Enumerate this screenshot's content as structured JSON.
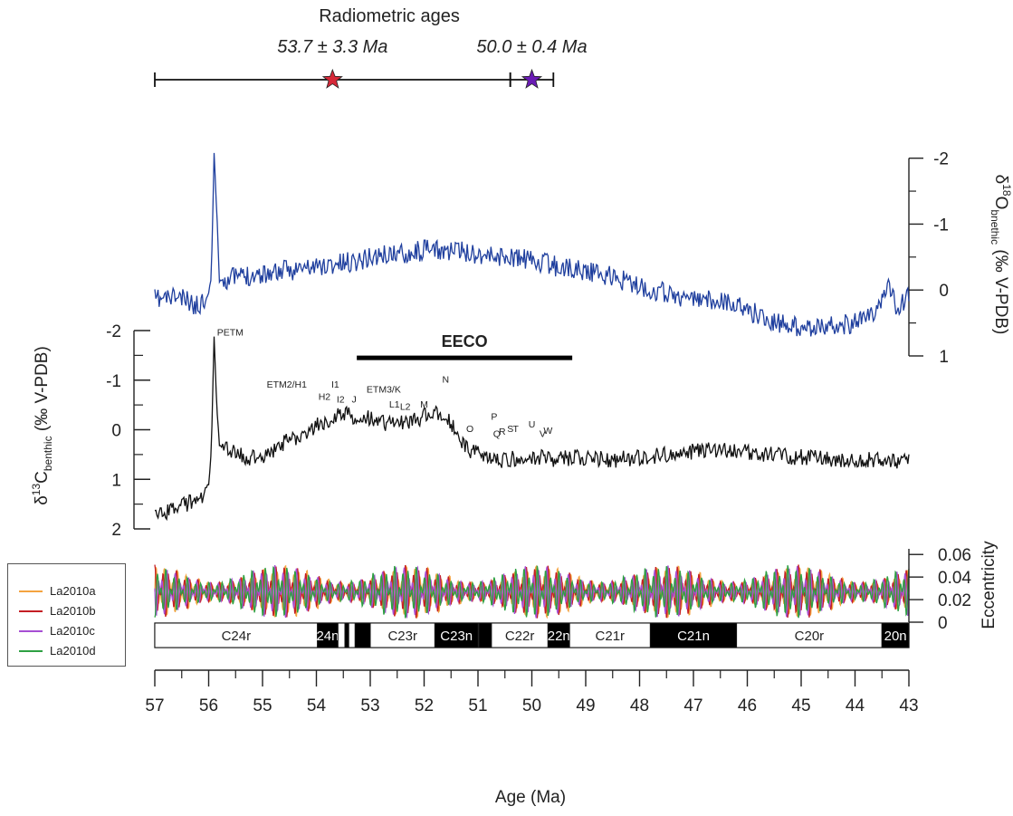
{
  "chart_data": [
    {
      "type": "scatter",
      "title": "Radiometric ages",
      "points": [
        {
          "label": "53.7 ± 3.3 Ma",
          "x": 53.7,
          "err": 3.3,
          "color": "#d62838"
        },
        {
          "label": "50.0 ± 0.4 Ma",
          "x": 50.0,
          "err": 0.4,
          "color": "#6a1bb5"
        }
      ]
    },
    {
      "type": "line",
      "ylabel_main": "δ",
      "ylabel_sup": "18",
      "ylabel_var": "O",
      "ylabel_sub": "bnethic",
      "ylabel_unit": " (‰ V-PDB)",
      "yticks": [
        "-2",
        "-1",
        "0",
        "1"
      ],
      "ylim": [
        1,
        -2.6
      ],
      "color": "#1f3f9e",
      "series": [
        {
          "x": [
            57.0,
            56.6,
            56.2,
            56.0,
            55.95,
            55.9,
            55.85,
            55.8,
            55.5,
            55.0,
            54.5,
            54.0,
            53.5,
            53.0,
            52.5,
            52.0,
            51.5,
            51.0,
            50.5,
            50.0,
            49.5,
            49.0,
            48.5,
            48.0,
            47.5,
            47.0,
            46.5,
            46.0,
            45.5,
            45.0,
            44.5,
            44.0,
            43.6,
            43.4,
            43.2,
            43.0
          ],
          "y": [
            0.15,
            0.1,
            0.25,
            0.05,
            -0.2,
            -2.1,
            -1.2,
            -0.15,
            -0.2,
            -0.25,
            -0.3,
            -0.35,
            -0.4,
            -0.5,
            -0.55,
            -0.6,
            -0.6,
            -0.55,
            -0.5,
            -0.45,
            -0.35,
            -0.3,
            -0.2,
            -0.05,
            0.05,
            0.15,
            0.15,
            0.3,
            0.5,
            0.55,
            0.55,
            0.5,
            0.35,
            -0.1,
            0.3,
            0.1
          ]
        }
      ]
    },
    {
      "type": "line",
      "ylabel_main": "δ",
      "ylabel_sup": "13",
      "ylabel_var": "C",
      "ylabel_sub": "benthic",
      "ylabel_unit": " (‰ V-PDB)",
      "yticks": [
        "-2",
        "-1",
        "0",
        "1",
        "2"
      ],
      "ylim": [
        2,
        -2
      ],
      "color": "#111111",
      "series": [
        {
          "x": [
            57.0,
            56.7,
            56.4,
            56.1,
            56.0,
            55.95,
            55.9,
            55.85,
            55.8,
            55.5,
            55.0,
            54.7,
            54.3,
            54.0,
            53.8,
            53.5,
            53.0,
            52.6,
            52.2,
            51.9,
            51.6,
            51.4,
            51.2,
            51.0,
            50.8,
            50.5,
            50.0,
            49.5,
            49.0,
            48.5,
            48.0,
            47.5,
            47.0,
            46.5,
            46.0,
            45.5,
            45.0,
            44.5,
            44.0,
            43.5,
            43.0
          ],
          "y": [
            1.8,
            1.6,
            1.5,
            1.3,
            1.1,
            0.4,
            -1.9,
            -0.5,
            0.3,
            0.5,
            0.6,
            0.3,
            0.1,
            -0.1,
            -0.2,
            -0.3,
            -0.25,
            -0.1,
            -0.2,
            -0.3,
            -0.35,
            0.1,
            0.4,
            0.5,
            0.6,
            0.6,
            0.55,
            0.6,
            0.55,
            0.6,
            0.55,
            0.5,
            0.45,
            0.4,
            0.45,
            0.5,
            0.55,
            0.6,
            0.6,
            0.6,
            0.65
          ]
        }
      ],
      "event_labels": [
        {
          "label": "PETM",
          "x": 55.6,
          "y": -1.9
        },
        {
          "label": "ETM2/H1",
          "x": 54.55,
          "y": -0.85
        },
        {
          "label": "H2",
          "x": 53.85,
          "y": -0.6
        },
        {
          "label": "I1",
          "x": 53.65,
          "y": -0.85
        },
        {
          "label": "I2",
          "x": 53.55,
          "y": -0.55
        },
        {
          "label": "J",
          "x": 53.3,
          "y": -0.55
        },
        {
          "label": "ETM3/K",
          "x": 52.75,
          "y": -0.75
        },
        {
          "label": "L1",
          "x": 52.55,
          "y": -0.45
        },
        {
          "label": "L2",
          "x": 52.35,
          "y": -0.4
        },
        {
          "label": "M",
          "x": 52.0,
          "y": -0.45
        },
        {
          "label": "N",
          "x": 51.6,
          "y": -0.95
        },
        {
          "label": "O",
          "x": 51.15,
          "y": 0.05
        },
        {
          "label": "P",
          "x": 50.7,
          "y": -0.2
        },
        {
          "label": "Q",
          "x": 50.65,
          "y": 0.15
        },
        {
          "label": "R",
          "x": 50.55,
          "y": 0.1
        },
        {
          "label": "S",
          "x": 50.4,
          "y": 0.05
        },
        {
          "label": "T",
          "x": 50.3,
          "y": 0.05
        },
        {
          "label": "U",
          "x": 50.0,
          "y": -0.05
        },
        {
          "label": "V",
          "x": 49.8,
          "y": 0.15
        },
        {
          "label": "W",
          "x": 49.7,
          "y": 0.08
        }
      ],
      "eeco": {
        "label": "EECO",
        "x_start": 53.25,
        "x_end": 49.25
      }
    },
    {
      "type": "line",
      "ylabel": "Eccentricity",
      "yticks": [
        "0",
        "0.02",
        "0.04",
        "0.06"
      ],
      "ylim": [
        0,
        0.065
      ],
      "series": [
        {
          "name": "La2010a",
          "color": "#f4a340"
        },
        {
          "name": "La2010b",
          "color": "#c41e24"
        },
        {
          "name": "La2010c",
          "color": "#a64fd3"
        },
        {
          "name": "La2010d",
          "color": "#2ea043"
        }
      ]
    }
  ],
  "polarity": [
    {
      "label": "C24r",
      "start": 57.0,
      "end": 53.98,
      "normal": false
    },
    {
      "label": "24n",
      "start": 53.98,
      "end": 53.6,
      "normal": true
    },
    {
      "label": "",
      "start": 53.6,
      "end": 53.47,
      "normal": false
    },
    {
      "label": "",
      "start": 53.47,
      "end": 53.4,
      "normal": true
    },
    {
      "label": "",
      "start": 53.4,
      "end": 53.28,
      "normal": false
    },
    {
      "label": "",
      "start": 53.28,
      "end": 53.0,
      "normal": true
    },
    {
      "label": "C23r",
      "start": 53.0,
      "end": 51.8,
      "normal": false
    },
    {
      "label": "C23n",
      "start": 51.8,
      "end": 51.0,
      "normal": true
    },
    {
      "label": "",
      "start": 51.0,
      "end": 50.98,
      "normal": false
    },
    {
      "label": "",
      "start": 50.98,
      "end": 50.75,
      "normal": true
    },
    {
      "label": "C22r",
      "start": 50.75,
      "end": 49.7,
      "normal": false
    },
    {
      "label": "22n",
      "start": 49.7,
      "end": 49.3,
      "normal": true
    },
    {
      "label": "C21r",
      "start": 49.3,
      "end": 47.8,
      "normal": false
    },
    {
      "label": "C21n",
      "start": 47.8,
      "end": 46.2,
      "normal": true
    },
    {
      "label": "C20r",
      "start": 46.2,
      "end": 43.5,
      "normal": false
    },
    {
      "label": "20n",
      "start": 43.5,
      "end": 43.0,
      "normal": true
    }
  ],
  "x_axis": {
    "label": "Age (Ma)",
    "min": 57,
    "max": 43,
    "ticks": [
      "57",
      "56",
      "55",
      "54",
      "53",
      "52",
      "51",
      "50",
      "49",
      "48",
      "47",
      "46",
      "45",
      "44",
      "43"
    ]
  }
}
